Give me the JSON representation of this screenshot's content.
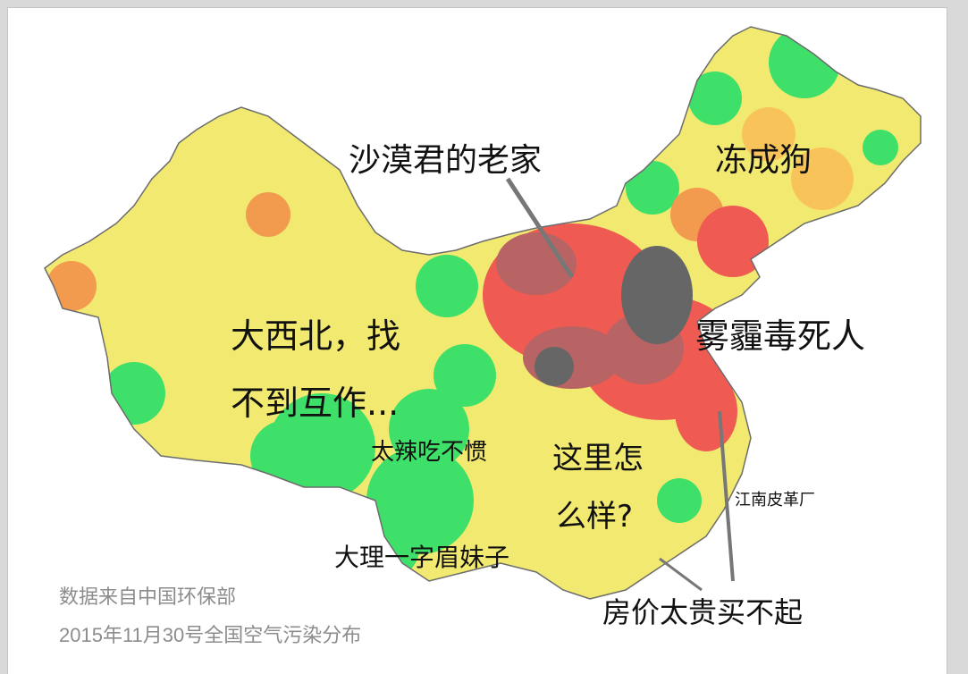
{
  "legend_colors": {
    "good": "#3fe06a",
    "moderate": "#f2ea70",
    "light": "#f7c35a",
    "medium": "#f29a4e",
    "heavy": "#ef5a52",
    "severe": "#b86464",
    "extreme": "#666666"
  },
  "annotations": {
    "desert_home": "沙漠君的老家",
    "frozen_dog": "冻成狗",
    "northwest_line1": "大西北，找",
    "northwest_line2": "不到互作...",
    "smog": "雾霾毒死人",
    "too_spicy": "太辣吃不惯",
    "how_here_line1": "这里怎",
    "how_here_line2": "么样?",
    "jiangnan_leather": "江南皮革厂",
    "dali_girl": "大理一字眉妹子",
    "house_price": "房价太贵买不起"
  },
  "credits": {
    "source": "数据来自中国环保部",
    "date_title": "2015年11月30号全国空气污染分布"
  }
}
